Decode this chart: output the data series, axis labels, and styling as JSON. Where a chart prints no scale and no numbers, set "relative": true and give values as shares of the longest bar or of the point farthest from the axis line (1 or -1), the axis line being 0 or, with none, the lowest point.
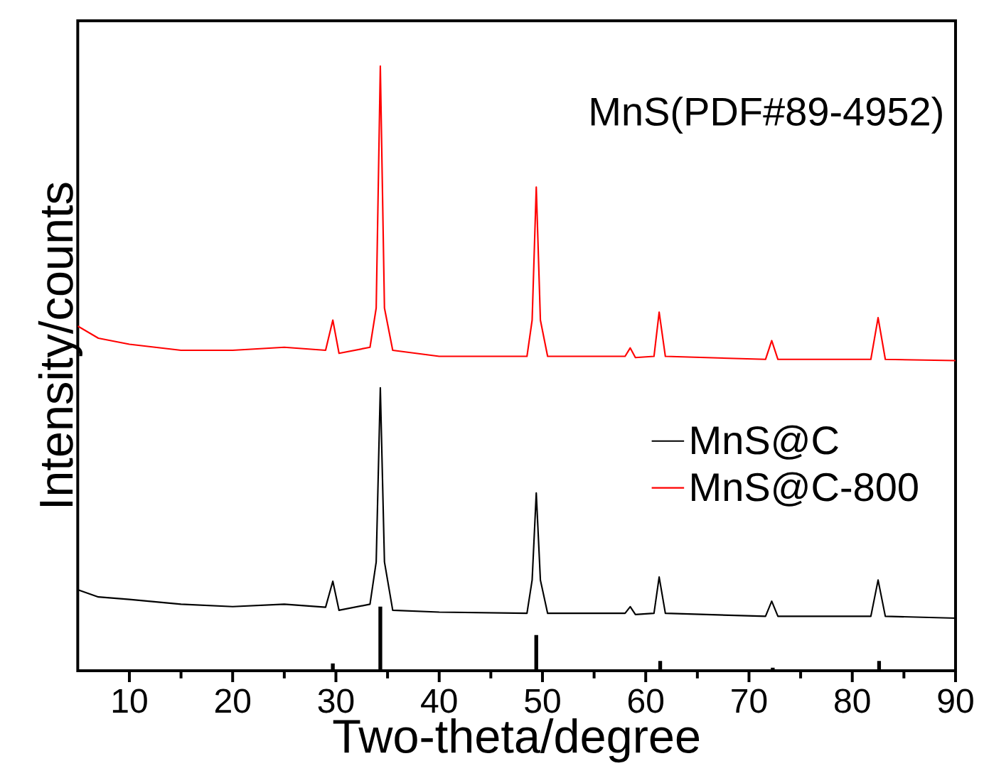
{
  "chart_data": {
    "type": "line",
    "xlabel": "Two-theta/degree",
    "ylabel": "Intensity/counts",
    "xlim": [
      5,
      90
    ],
    "xticks": [
      10,
      20,
      30,
      40,
      50,
      60,
      70,
      80,
      90
    ],
    "relative": true,
    "tick_labels": "x",
    "legend": "right",
    "marker": "none",
    "line_style": "solid",
    "annotations": [
      "MnS(PDF#89-4952)"
    ],
    "series": [
      {
        "name": "MnS@C",
        "color": "#000000",
        "x": [
          5,
          7,
          10,
          15,
          20,
          25,
          29,
          29.7,
          30.3,
          33.3,
          33.9,
          34.3,
          34.7,
          35.5,
          40,
          48.5,
          49.0,
          49.4,
          49.8,
          50.5,
          58,
          58.5,
          59,
          60.8,
          61.3,
          61.9,
          71.6,
          72.2,
          72.8,
          81.8,
          82.5,
          83.2,
          90
        ],
        "values": [
          0.134,
          0.122,
          0.118,
          0.11,
          0.106,
          0.11,
          0.105,
          0.148,
          0.1,
          0.11,
          0.18,
          0.468,
          0.18,
          0.1,
          0.097,
          0.095,
          0.15,
          0.294,
          0.15,
          0.095,
          0.095,
          0.106,
          0.093,
          0.095,
          0.155,
          0.095,
          0.09,
          0.115,
          0.09,
          0.09,
          0.15,
          0.09,
          0.087
        ]
      },
      {
        "name": "MnS@C-800",
        "color": "#ff0000",
        "x": [
          5,
          7,
          10,
          15,
          20,
          25,
          29,
          29.7,
          30.3,
          33.3,
          33.9,
          34.3,
          34.7,
          35.5,
          40,
          48.5,
          49.0,
          49.4,
          49.8,
          50.5,
          58,
          58.5,
          59,
          60.8,
          61.3,
          61.9,
          71.6,
          72.2,
          72.8,
          81.8,
          82.5,
          83.2,
          90
        ],
        "values": [
          0.57,
          0.55,
          0.54,
          0.53,
          0.53,
          0.535,
          0.53,
          0.58,
          0.525,
          0.535,
          0.6,
          1.0,
          0.6,
          0.53,
          0.52,
          0.52,
          0.58,
          0.8,
          0.58,
          0.52,
          0.52,
          0.534,
          0.518,
          0.52,
          0.593,
          0.52,
          0.515,
          0.546,
          0.515,
          0.515,
          0.584,
          0.515,
          0.513
        ]
      },
      {
        "type": "bar",
        "color": "#000000",
        "x": [
          29.7,
          34.3,
          49.4,
          61.4,
          72.3,
          82.6
        ],
        "values": [
          0.012,
          0.106,
          0.059,
          0.016,
          0.005,
          0.016
        ]
      }
    ]
  }
}
